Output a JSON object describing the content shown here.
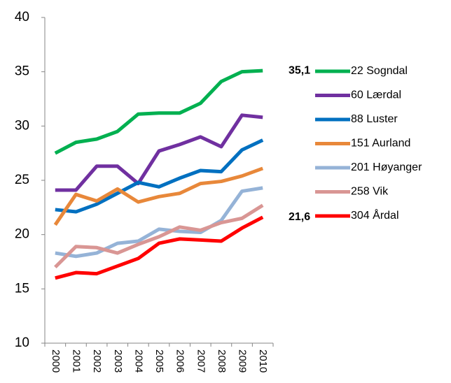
{
  "chart_data": {
    "type": "line",
    "categories": [
      "2000",
      "2001",
      "2002",
      "2003",
      "2004",
      "2005",
      "2006",
      "2007",
      "2008",
      "2009",
      "2010"
    ],
    "ylim": [
      10,
      40
    ],
    "yticks": [
      10,
      15,
      20,
      25,
      30,
      35,
      40
    ],
    "series": [
      {
        "name": "22 Sogndal",
        "color": "#00b050",
        "values": [
          27.5,
          28.5,
          28.8,
          29.5,
          31.1,
          31.2,
          31.2,
          32.1,
          34.1,
          35.0,
          35.1
        ]
      },
      {
        "name": "60 Lærdal",
        "color": "#7030a0",
        "values": [
          24.1,
          24.1,
          26.3,
          26.3,
          24.7,
          27.7,
          28.3,
          29.0,
          28.1,
          31.0,
          30.8
        ]
      },
      {
        "name": "88 Luster",
        "color": "#0070c0",
        "values": [
          22.3,
          22.1,
          22.8,
          23.8,
          24.8,
          24.4,
          25.2,
          25.9,
          25.8,
          27.8,
          28.7
        ]
      },
      {
        "name": "151 Aurland",
        "color": "#e8883a",
        "values": [
          20.9,
          23.7,
          23.1,
          24.2,
          23.0,
          23.5,
          23.8,
          24.7,
          24.9,
          25.4,
          26.1
        ]
      },
      {
        "name": "201 Høyanger",
        "color": "#95b3d7",
        "values": [
          18.3,
          18.0,
          18.3,
          19.2,
          19.4,
          20.5,
          20.3,
          20.2,
          21.3,
          24.0,
          24.3
        ]
      },
      {
        "name": "258 Vik",
        "color": "#d99694",
        "values": [
          17.0,
          18.9,
          18.8,
          18.3,
          19.1,
          19.8,
          20.7,
          20.4,
          21.1,
          21.5,
          22.7
        ]
      },
      {
        "name": "304 Årdal",
        "color": "#ff0000",
        "values": [
          16.0,
          16.5,
          16.4,
          17.1,
          17.8,
          19.2,
          19.6,
          19.5,
          19.4,
          20.6,
          21.6
        ]
      }
    ],
    "annotations": [
      {
        "label": "35,1",
        "value": 35.1,
        "color": "#00b050"
      },
      {
        "label": "21,6",
        "value": 21.6,
        "color": "#ff0000"
      }
    ]
  }
}
